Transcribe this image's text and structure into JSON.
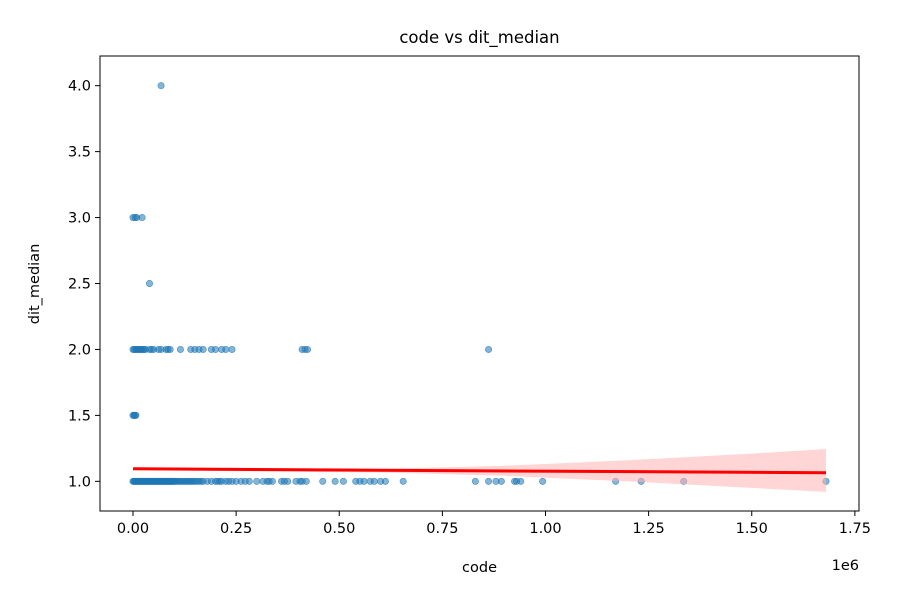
{
  "chart_data": {
    "type": "scatter",
    "title": "code vs dit_median",
    "xlabel": "code",
    "ylabel": "dit_median",
    "x_offset_label": "1e6",
    "xlim": [
      -80000,
      1760000
    ],
    "ylim": [
      0.775,
      4.225
    ],
    "x_ticks": [
      0,
      250000,
      500000,
      750000,
      1000000,
      1250000,
      1500000,
      1750000
    ],
    "x_tick_labels": [
      "0.00",
      "0.25",
      "0.50",
      "0.75",
      "1.00",
      "1.25",
      "1.50",
      "1.75"
    ],
    "y_ticks": [
      1.0,
      1.5,
      2.0,
      2.5,
      3.0,
      3.5,
      4.0
    ],
    "y_tick_labels": [
      "1.0",
      "1.5",
      "2.0",
      "2.5",
      "3.0",
      "3.5",
      "4.0"
    ],
    "grid": false,
    "legend": null,
    "point_color": "#1f77b4",
    "fit_color": "#ff0000",
    "band_color": "#ffb3b3",
    "series": [
      {
        "kind": "points",
        "points": [
          [
            0,
            1
          ],
          [
            2000,
            1
          ],
          [
            4000,
            1
          ],
          [
            6000,
            1
          ],
          [
            8000,
            1
          ],
          [
            10000,
            1
          ],
          [
            12000,
            1
          ],
          [
            14000,
            1
          ],
          [
            16000,
            1
          ],
          [
            18000,
            1
          ],
          [
            20000,
            1
          ],
          [
            22000,
            1
          ],
          [
            24000,
            1
          ],
          [
            26000,
            1
          ],
          [
            28000,
            1
          ],
          [
            30000,
            1
          ],
          [
            32000,
            1
          ],
          [
            34000,
            1
          ],
          [
            36000,
            1
          ],
          [
            38000,
            1
          ],
          [
            40000,
            1
          ],
          [
            42000,
            1
          ],
          [
            44000,
            1
          ],
          [
            46000,
            1
          ],
          [
            48000,
            1
          ],
          [
            50000,
            1
          ],
          [
            52000,
            1
          ],
          [
            54000,
            1
          ],
          [
            56000,
            1
          ],
          [
            58000,
            1
          ],
          [
            60000,
            1
          ],
          [
            62000,
            1
          ],
          [
            64000,
            1
          ],
          [
            66000,
            1
          ],
          [
            68000,
            1
          ],
          [
            70000,
            1
          ],
          [
            72000,
            1
          ],
          [
            74000,
            1
          ],
          [
            76000,
            1
          ],
          [
            78000,
            1
          ],
          [
            80000,
            1
          ],
          [
            82000,
            1
          ],
          [
            84000,
            1
          ],
          [
            86000,
            1
          ],
          [
            88000,
            1
          ],
          [
            90000,
            1
          ],
          [
            92000,
            1
          ],
          [
            94000,
            1
          ],
          [
            96000,
            1
          ],
          [
            98000,
            1
          ],
          [
            100000,
            1
          ],
          [
            103000,
            1
          ],
          [
            106000,
            1
          ],
          [
            110000,
            1
          ],
          [
            114000,
            1
          ],
          [
            118000,
            1
          ],
          [
            122000,
            1
          ],
          [
            126000,
            1
          ],
          [
            130000,
            1
          ],
          [
            134000,
            1
          ],
          [
            138000,
            1
          ],
          [
            142000,
            1
          ],
          [
            146000,
            1
          ],
          [
            150000,
            1
          ],
          [
            155000,
            1
          ],
          [
            160000,
            1
          ],
          [
            165000,
            1
          ],
          [
            170000,
            1
          ],
          [
            180000,
            1
          ],
          [
            190000,
            1
          ],
          [
            200000,
            1
          ],
          [
            205000,
            1
          ],
          [
            210000,
            1
          ],
          [
            215000,
            1
          ],
          [
            225000,
            1
          ],
          [
            232000,
            1
          ],
          [
            240000,
            1
          ],
          [
            250000,
            1
          ],
          [
            262000,
            1
          ],
          [
            272000,
            1
          ],
          [
            282000,
            1
          ],
          [
            300000,
            1
          ],
          [
            315000,
            1
          ],
          [
            325000,
            1
          ],
          [
            330000,
            1
          ],
          [
            338000,
            1
          ],
          [
            360000,
            1
          ],
          [
            367000,
            1
          ],
          [
            375000,
            1
          ],
          [
            395000,
            1
          ],
          [
            405000,
            1
          ],
          [
            410000,
            1
          ],
          [
            420000,
            1
          ],
          [
            460000,
            1
          ],
          [
            490000,
            1
          ],
          [
            510000,
            1
          ],
          [
            540000,
            1
          ],
          [
            550000,
            1
          ],
          [
            560000,
            1
          ],
          [
            575000,
            1
          ],
          [
            585000,
            1
          ],
          [
            600000,
            1
          ],
          [
            612000,
            1
          ],
          [
            655000,
            1
          ],
          [
            830000,
            1
          ],
          [
            862000,
            1
          ],
          [
            880000,
            1
          ],
          [
            893000,
            1
          ],
          [
            925000,
            1
          ],
          [
            930000,
            1
          ],
          [
            940000,
            1
          ],
          [
            993000,
            1
          ],
          [
            1170000,
            1
          ],
          [
            1232000,
            1
          ],
          [
            1335000,
            1
          ],
          [
            1680000,
            1
          ],
          [
            0,
            1.5
          ],
          [
            2500,
            1.5
          ],
          [
            5000,
            1.5
          ],
          [
            7000,
            1.5
          ],
          [
            0,
            2
          ],
          [
            3000,
            2
          ],
          [
            6000,
            2
          ],
          [
            9000,
            2
          ],
          [
            12000,
            2
          ],
          [
            15000,
            2
          ],
          [
            18000,
            2
          ],
          [
            21000,
            2
          ],
          [
            24000,
            2
          ],
          [
            27000,
            2
          ],
          [
            30000,
            2
          ],
          [
            40000,
            2
          ],
          [
            45000,
            2
          ],
          [
            50000,
            2
          ],
          [
            62000,
            2
          ],
          [
            68000,
            2
          ],
          [
            80000,
            2
          ],
          [
            85000,
            2
          ],
          [
            90000,
            2
          ],
          [
            115000,
            2
          ],
          [
            140000,
            2
          ],
          [
            150000,
            2
          ],
          [
            160000,
            2
          ],
          [
            170000,
            2
          ],
          [
            190000,
            2
          ],
          [
            200000,
            2
          ],
          [
            215000,
            2
          ],
          [
            225000,
            2
          ],
          [
            240000,
            2
          ],
          [
            410000,
            2
          ],
          [
            417000,
            2
          ],
          [
            423000,
            2
          ],
          [
            862000,
            2
          ],
          [
            40000,
            2.5
          ],
          [
            0,
            3
          ],
          [
            5000,
            3
          ],
          [
            9000,
            3
          ],
          [
            22000,
            3
          ],
          [
            68000,
            4
          ]
        ]
      },
      {
        "kind": "fit_line",
        "x": [
          0,
          1680000
        ],
        "y": [
          1.095,
          1.065
        ]
      },
      {
        "kind": "confidence_band",
        "x": [
          0,
          300000,
          600000,
          900000,
          1200000,
          1500000,
          1680000
        ],
        "upper": [
          1.105,
          1.095,
          1.093,
          1.118,
          1.16,
          1.21,
          1.245
        ],
        "lower": [
          1.085,
          1.075,
          1.067,
          1.042,
          1.0,
          0.95,
          0.92
        ]
      }
    ]
  }
}
